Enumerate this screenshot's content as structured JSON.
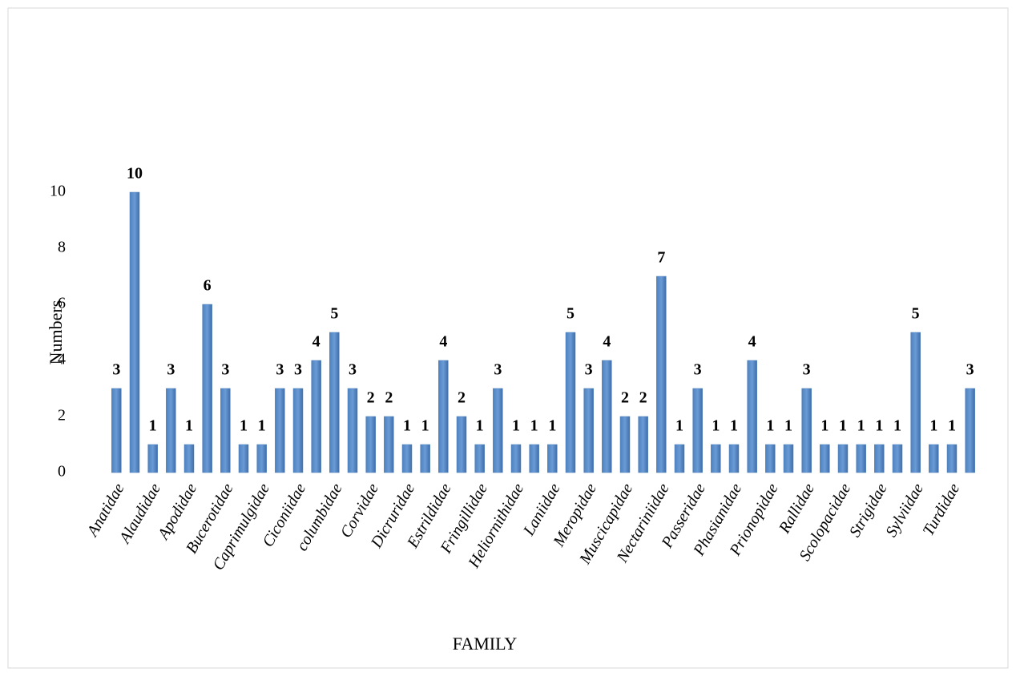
{
  "chart_data": {
    "type": "bar",
    "x_label": "FAMILY",
    "y_label": "Numbers",
    "categories": [
      "Anatidae",
      null,
      "Alaudidae",
      null,
      "Apodidae",
      null,
      "Bucerotidae",
      null,
      "Caprimulgidae",
      null,
      "Ciconiidae",
      null,
      "columbidae",
      null,
      "Corvidae",
      null,
      "Dicruridae",
      null,
      "Estrildidae",
      null,
      "Fringillidae",
      null,
      "Heliornithidae",
      null,
      "Laniidae",
      null,
      "Meropidae",
      null,
      "Muscicapidae",
      null,
      "Nectariniidae",
      null,
      "Passeridae",
      null,
      "Phasianidae",
      null,
      "Prionopidae",
      null,
      "Rallidae",
      null,
      "Scolopacidae",
      null,
      "Strigidae",
      null,
      "Sylviidae",
      null,
      "Turdidae",
      null
    ],
    "values": [
      3,
      10,
      1,
      3,
      1,
      6,
      3,
      1,
      1,
      3,
      3,
      4,
      5,
      3,
      2,
      2,
      1,
      1,
      4,
      2,
      1,
      3,
      1,
      1,
      1,
      5,
      3,
      4,
      2,
      2,
      7,
      1,
      3,
      1,
      1,
      4,
      1,
      1,
      3,
      1,
      1,
      1,
      1,
      1,
      5,
      1,
      1,
      3
    ],
    "color": "#4f81bd",
    "ylim": [
      0,
      10
    ],
    "yticks": [
      0,
      2,
      4,
      6,
      8,
      10
    ],
    "grid": false
  }
}
